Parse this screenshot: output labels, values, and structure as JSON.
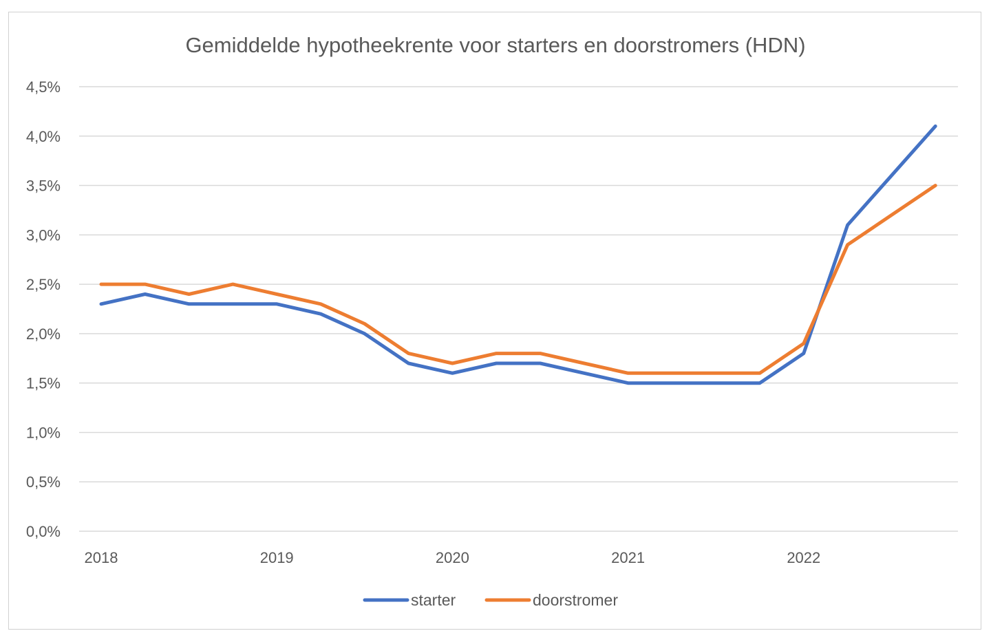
{
  "chart_data": {
    "type": "line",
    "title": "Gemiddelde hypotheekrente voor starters en doorstromers (HDN)",
    "xlabel": "",
    "ylabel": "",
    "ylim": [
      0,
      4.5
    ],
    "y_ticks": [
      "0,0%",
      "0,5%",
      "1,0%",
      "1,5%",
      "2,0%",
      "2,5%",
      "3,0%",
      "3,5%",
      "4,0%",
      "4,5%"
    ],
    "x_tick_labels": [
      "2018",
      "2019",
      "2020",
      "2021",
      "2022"
    ],
    "x": [
      "2018 Q1",
      "2018 Q2",
      "2018 Q3",
      "2018 Q4",
      "2019 Q1",
      "2019 Q2",
      "2019 Q3",
      "2019 Q4",
      "2020 Q1",
      "2020 Q2",
      "2020 Q3",
      "2020 Q4",
      "2021 Q1",
      "2021 Q2",
      "2021 Q3",
      "2021 Q4",
      "2022 Q1",
      "2022 Q2",
      "2022 Q3",
      "2022 Q4"
    ],
    "series": [
      {
        "name": "starter",
        "color": "#4472c4",
        "values": [
          2.3,
          2.4,
          2.3,
          2.3,
          2.3,
          2.2,
          2.0,
          1.7,
          1.6,
          1.7,
          1.7,
          1.6,
          1.5,
          1.5,
          1.5,
          1.5,
          1.8,
          3.1,
          3.6,
          4.1
        ]
      },
      {
        "name": "doorstromer",
        "color": "#ed7d31",
        "values": [
          2.5,
          2.5,
          2.4,
          2.5,
          2.4,
          2.3,
          2.1,
          1.8,
          1.7,
          1.8,
          1.8,
          1.7,
          1.6,
          1.6,
          1.6,
          1.6,
          1.9,
          2.9,
          3.2,
          3.5
        ]
      }
    ],
    "grid": true,
    "legend_position": "bottom"
  }
}
